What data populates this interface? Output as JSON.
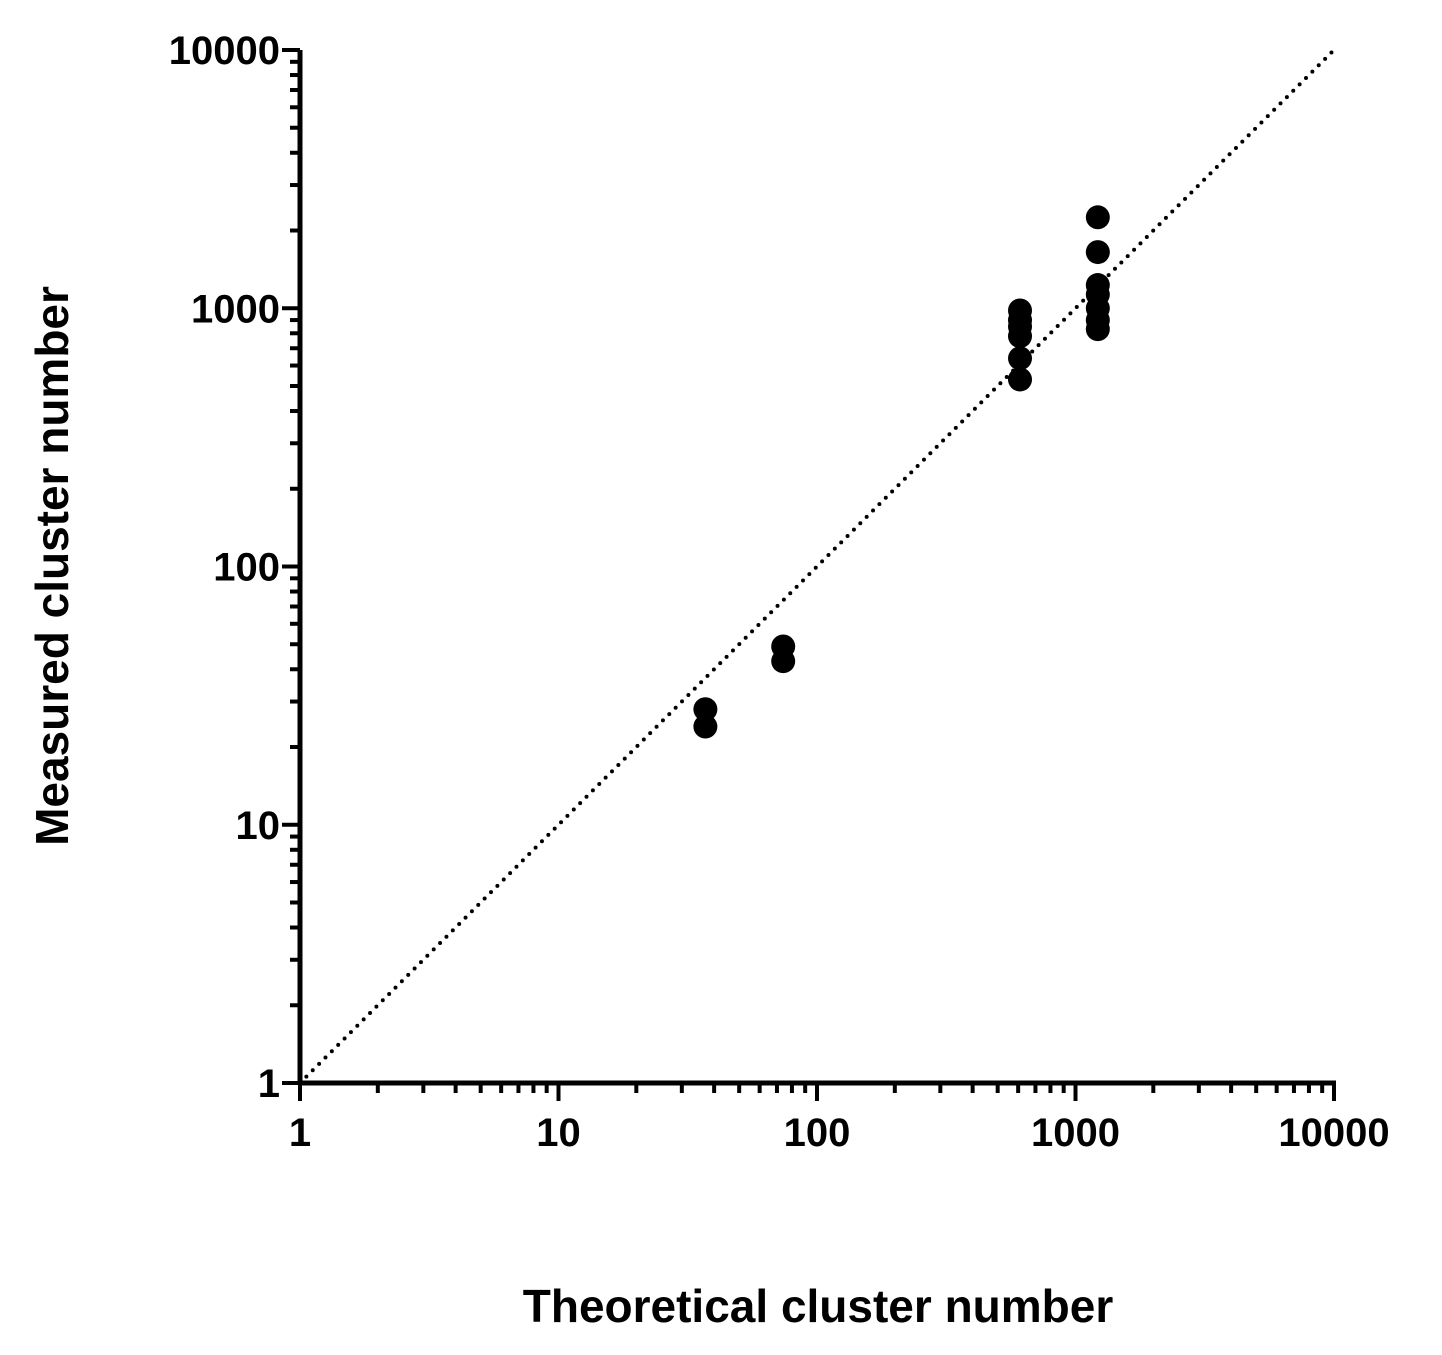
{
  "chart_data": {
    "type": "scatter",
    "xlabel": "Theoretical cluster number",
    "ylabel": "Measured cluster number",
    "xscale": "log",
    "yscale": "log",
    "xlim": [
      1,
      10000
    ],
    "ylim": [
      1,
      10000
    ],
    "x_ticks": [
      "1",
      "10",
      "100",
      "1000",
      "10000"
    ],
    "y_ticks": [
      "1",
      "10",
      "100",
      "1000",
      "10000"
    ],
    "grid": false,
    "reference_line": {
      "style": "dotted",
      "from": [
        1,
        1
      ],
      "to": [
        10000,
        10000
      ]
    },
    "series": [
      {
        "marker_color": "#000000",
        "points": [
          {
            "x": 37,
            "y": 28
          },
          {
            "x": 37,
            "y": 24
          },
          {
            "x": 74,
            "y": 49
          },
          {
            "x": 74,
            "y": 43
          },
          {
            "x": 610,
            "y": 980
          },
          {
            "x": 610,
            "y": 900
          },
          {
            "x": 610,
            "y": 850
          },
          {
            "x": 610,
            "y": 780
          },
          {
            "x": 610,
            "y": 640
          },
          {
            "x": 610,
            "y": 530
          },
          {
            "x": 1220,
            "y": 2250
          },
          {
            "x": 1220,
            "y": 1650
          },
          {
            "x": 1220,
            "y": 1230
          },
          {
            "x": 1220,
            "y": 1130
          },
          {
            "x": 1220,
            "y": 1000
          },
          {
            "x": 1220,
            "y": 900
          },
          {
            "x": 1220,
            "y": 830
          }
        ]
      }
    ]
  }
}
